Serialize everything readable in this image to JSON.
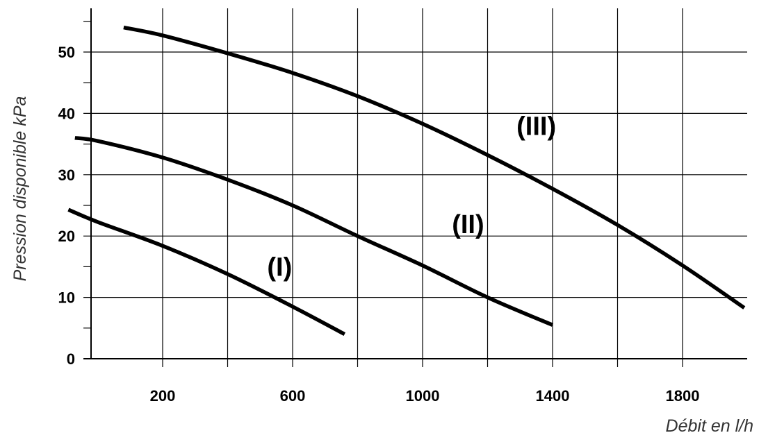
{
  "chart_data": {
    "type": "line",
    "xlabel": "Débit en l/h",
    "ylabel": "Pression disponible kPa",
    "xlim": [
      -240,
      2000
    ],
    "ylim": [
      0,
      57
    ],
    "xticks": [
      200,
      600,
      1000,
      1400,
      1800
    ],
    "xgrid": [
      200,
      400,
      600,
      800,
      1000,
      1200,
      1400,
      1600,
      1800
    ],
    "yticks": [
      0,
      10,
      20,
      30,
      40,
      50
    ],
    "yminor": [
      5,
      15,
      25,
      35,
      45,
      55
    ],
    "ygrid": [
      10,
      20,
      30,
      40,
      50
    ],
    "grid": true,
    "series": [
      {
        "name": "(I)",
        "points": [
          [
            -90,
            24.3
          ],
          [
            0,
            22.3
          ],
          [
            200,
            18.4
          ],
          [
            400,
            13.8
          ],
          [
            600,
            8.5
          ],
          [
            760,
            4.0
          ]
        ]
      },
      {
        "name": "(II)",
        "points": [
          [
            -70,
            36.0
          ],
          [
            0,
            35.5
          ],
          [
            200,
            32.8
          ],
          [
            400,
            29.2
          ],
          [
            600,
            25.0
          ],
          [
            800,
            20.0
          ],
          [
            1000,
            15.2
          ],
          [
            1200,
            10.0
          ],
          [
            1400,
            5.5
          ]
        ]
      },
      {
        "name": "(III)",
        "points": [
          [
            80,
            54.0
          ],
          [
            200,
            52.7
          ],
          [
            400,
            49.8
          ],
          [
            600,
            46.6
          ],
          [
            800,
            42.8
          ],
          [
            1000,
            38.3
          ],
          [
            1200,
            33.2
          ],
          [
            1400,
            27.7
          ],
          [
            1600,
            21.8
          ],
          [
            1800,
            15.2
          ],
          [
            1990,
            8.3
          ]
        ]
      }
    ],
    "labels": [
      {
        "text": "(I)",
        "x": 560,
        "y": 13.5
      },
      {
        "text": "(II)",
        "x": 1140,
        "y": 20.5
      },
      {
        "text": "(III)",
        "x": 1350,
        "y": 36.5
      }
    ]
  }
}
